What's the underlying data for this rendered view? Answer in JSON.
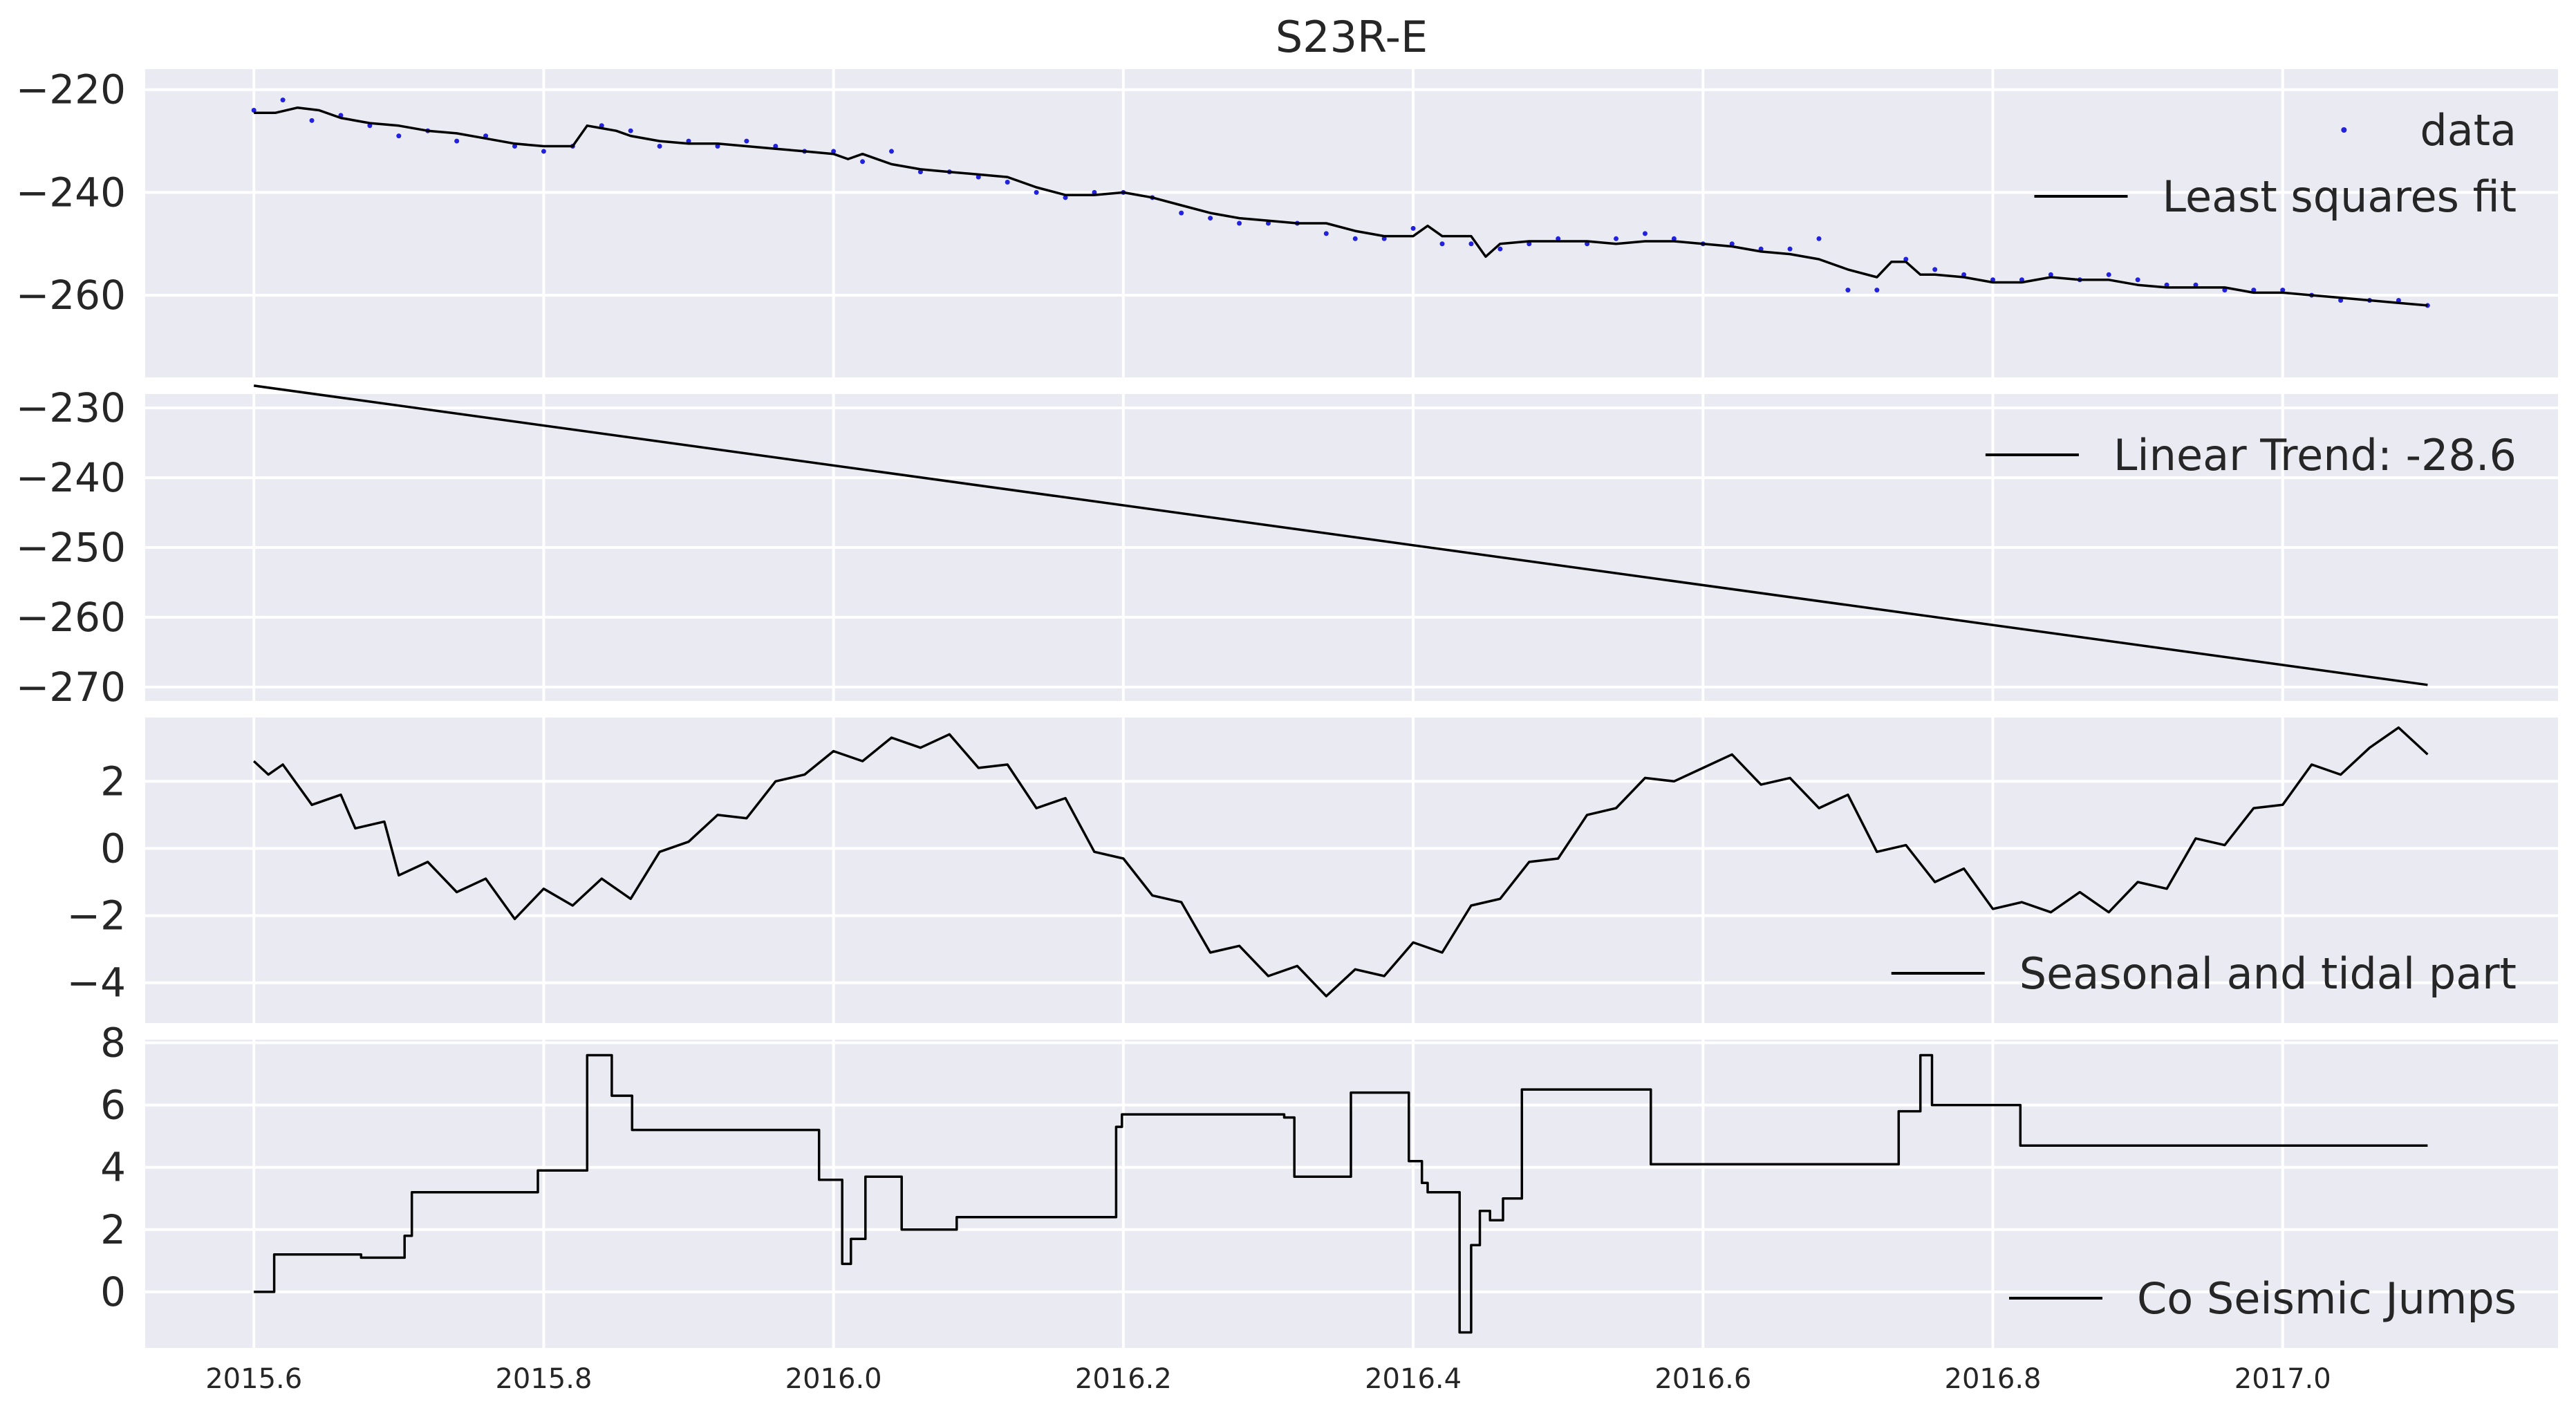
{
  "title": "S23R-E",
  "colors": {
    "panel_bg": "#eaeaf2",
    "grid": "#ffffff",
    "line": "#000000",
    "data_points": "#2222dd",
    "text": "#262626"
  },
  "x_ticks": [
    "2015.6",
    "2015.8",
    "2016.0",
    "2016.2",
    "2016.4",
    "2016.6",
    "2016.8",
    "2017.0"
  ],
  "chart_data": [
    {
      "type": "scatter",
      "xlim": [
        2015.525,
        2017.19
      ],
      "ylim": [
        -276,
        -216
      ],
      "y_ticks": [
        -220,
        -240,
        -260
      ],
      "grid": true,
      "legend_position": "top-right",
      "series": [
        {
          "name": "data",
          "kind": "points",
          "x": [
            2015.6,
            2015.62,
            2015.64,
            2015.66,
            2015.68,
            2015.7,
            2015.72,
            2015.74,
            2015.76,
            2015.78,
            2015.8,
            2015.82,
            2015.84,
            2015.86,
            2015.88,
            2015.9,
            2015.92,
            2015.94,
            2015.96,
            2015.98,
            2016.0,
            2016.02,
            2016.04,
            2016.06,
            2016.08,
            2016.1,
            2016.12,
            2016.14,
            2016.16,
            2016.18,
            2016.2,
            2016.22,
            2016.24,
            2016.26,
            2016.28,
            2016.3,
            2016.32,
            2016.34,
            2016.36,
            2016.38,
            2016.4,
            2016.42,
            2016.44,
            2016.46,
            2016.48,
            2016.5,
            2016.52,
            2016.54,
            2016.56,
            2016.58,
            2016.6,
            2016.62,
            2016.64,
            2016.66,
            2016.68,
            2016.7,
            2016.72,
            2016.74,
            2016.76,
            2016.78,
            2016.8,
            2016.82,
            2016.84,
            2016.86,
            2016.88,
            2016.9,
            2016.92,
            2016.94,
            2016.96,
            2016.98,
            2017.0,
            2017.02,
            2017.04,
            2017.06,
            2017.08,
            2017.1
          ],
          "y": [
            -224,
            -222,
            -226,
            -225,
            -227,
            -229,
            -228,
            -230,
            -229,
            -231,
            -232,
            -231,
            -227,
            -228,
            -231,
            -230,
            -231,
            -230,
            -231,
            -232,
            -232,
            -234,
            -232,
            -236,
            -236,
            -237,
            -238,
            -240,
            -241,
            -240,
            -240,
            -241,
            -244,
            -245,
            -246,
            -246,
            -246,
            -248,
            -249,
            -249,
            -247,
            -250,
            -250,
            -251,
            -250,
            -249,
            -250,
            -249,
            -248,
            -249,
            -250,
            -250,
            -251,
            -251,
            -249,
            -259,
            -259,
            -253,
            -255,
            -256,
            -257,
            -257,
            -256,
            -257,
            -256,
            -257,
            -258,
            -258,
            -259,
            -259,
            -259,
            -260,
            -261,
            -261,
            -261,
            -262
          ]
        },
        {
          "name": "Least squares fit",
          "kind": "line",
          "x": [
            2015.6,
            2015.615,
            2015.63,
            2015.645,
            2015.66,
            2015.68,
            2015.7,
            2015.72,
            2015.74,
            2015.76,
            2015.78,
            2015.8,
            2015.82,
            2015.83,
            2015.84,
            2015.85,
            2015.86,
            2015.88,
            2015.9,
            2015.92,
            2015.94,
            2015.96,
            2015.98,
            2016.0,
            2016.01,
            2016.02,
            2016.04,
            2016.06,
            2016.08,
            2016.1,
            2016.12,
            2016.14,
            2016.16,
            2016.18,
            2016.2,
            2016.22,
            2016.24,
            2016.26,
            2016.28,
            2016.3,
            2016.32,
            2016.34,
            2016.36,
            2016.38,
            2016.4,
            2016.41,
            2016.42,
            2016.44,
            2016.45,
            2016.46,
            2016.48,
            2016.5,
            2016.52,
            2016.54,
            2016.56,
            2016.58,
            2016.6,
            2016.62,
            2016.64,
            2016.66,
            2016.68,
            2016.7,
            2016.72,
            2016.73,
            2016.74,
            2016.75,
            2016.76,
            2016.78,
            2016.8,
            2016.82,
            2016.84,
            2016.86,
            2016.88,
            2016.9,
            2016.92,
            2016.94,
            2016.96,
            2016.98,
            2017.0,
            2017.02,
            2017.04,
            2017.06,
            2017.08,
            2017.1
          ],
          "y": [
            -224.5,
            -224.5,
            -223.5,
            -224,
            -225.5,
            -226.5,
            -227,
            -228,
            -228.5,
            -229.5,
            -230.5,
            -231,
            -231,
            -227,
            -227.5,
            -228,
            -229,
            -230,
            -230.5,
            -230.5,
            -231,
            -231.5,
            -232,
            -232.5,
            -233.5,
            -232.5,
            -234.5,
            -235.5,
            -236,
            -236.5,
            -237,
            -239,
            -240.5,
            -240.5,
            -240,
            -241,
            -242.5,
            -244,
            -245,
            -245.5,
            -246,
            -246,
            -247.5,
            -248.5,
            -248.5,
            -246.5,
            -248.5,
            -248.5,
            -252.5,
            -250,
            -249.5,
            -249.5,
            -249.5,
            -250,
            -249.5,
            -249.5,
            -250,
            -250.5,
            -251.5,
            -252,
            -253,
            -255,
            -256.5,
            -253.5,
            -253.5,
            -256,
            -256,
            -256.5,
            -257.5,
            -257.5,
            -256.5,
            -257,
            -257,
            -258,
            -258.5,
            -258.5,
            -258.5,
            -259.5,
            -259.5,
            -260,
            -260.5,
            -261,
            -261.5,
            -262
          ]
        }
      ]
    },
    {
      "type": "line",
      "xlim": [
        2015.525,
        2017.19
      ],
      "ylim": [
        -272,
        -228
      ],
      "y_ticks": [
        -230,
        -240,
        -250,
        -260,
        -270
      ],
      "grid": true,
      "legend_position": "top-right",
      "series": [
        {
          "name": "Linear Trend: -28.6",
          "x": [
            2015.6,
            2017.1
          ],
          "y": [
            -226.8,
            -269.7
          ]
        }
      ]
    },
    {
      "type": "line",
      "xlim": [
        2015.525,
        2017.19
      ],
      "ylim": [
        -5.2,
        3.9
      ],
      "y_ticks": [
        2,
        0,
        -2,
        -4
      ],
      "grid": true,
      "legend_position": "bottom-right",
      "series": [
        {
          "name": "Seasonal and tidal part",
          "x": [
            2015.6,
            2015.61,
            2015.62,
            2015.64,
            2015.66,
            2015.67,
            2015.69,
            2015.7,
            2015.72,
            2015.74,
            2015.76,
            2015.78,
            2015.8,
            2015.82,
            2015.84,
            2015.86,
            2015.88,
            2015.9,
            2015.92,
            2015.94,
            2015.96,
            2015.98,
            2016.0,
            2016.02,
            2016.04,
            2016.06,
            2016.08,
            2016.1,
            2016.12,
            2016.14,
            2016.16,
            2016.18,
            2016.2,
            2016.22,
            2016.24,
            2016.26,
            2016.28,
            2016.3,
            2016.32,
            2016.34,
            2016.36,
            2016.38,
            2016.4,
            2016.42,
            2016.44,
            2016.46,
            2016.48,
            2016.5,
            2016.52,
            2016.54,
            2016.56,
            2016.58,
            2016.6,
            2016.62,
            2016.64,
            2016.66,
            2016.68,
            2016.7,
            2016.72,
            2016.74,
            2016.76,
            2016.78,
            2016.8,
            2016.82,
            2016.84,
            2016.86,
            2016.88,
            2016.9,
            2016.92,
            2016.94,
            2016.96,
            2016.98,
            2017.0,
            2017.02,
            2017.04,
            2017.06,
            2017.08,
            2017.1
          ],
          "y": [
            2.6,
            2.2,
            2.5,
            1.3,
            1.6,
            0.6,
            0.8,
            -0.8,
            -0.4,
            -1.3,
            -0.9,
            -2.1,
            -1.2,
            -1.7,
            -0.9,
            -1.5,
            -0.1,
            0.2,
            1.0,
            0.9,
            2.0,
            2.2,
            2.9,
            2.6,
            3.3,
            3.0,
            3.4,
            2.4,
            2.5,
            1.2,
            1.5,
            -0.1,
            -0.3,
            -1.4,
            -1.6,
            -3.1,
            -2.9,
            -3.8,
            -3.5,
            -4.4,
            -3.6,
            -3.8,
            -2.8,
            -3.1,
            -1.7,
            -1.5,
            -0.4,
            -0.3,
            1.0,
            1.2,
            2.1,
            2.0,
            2.4,
            2.8,
            1.9,
            2.1,
            1.2,
            1.6,
            -0.1,
            0.1,
            -1.0,
            -0.6,
            -1.8,
            -1.6,
            -1.9,
            -1.3,
            -1.9,
            -1.0,
            -1.2,
            0.3,
            0.1,
            1.2,
            1.3,
            2.5,
            2.2,
            3.0,
            3.6,
            2.8
          ]
        }
      ]
    },
    {
      "type": "line",
      "xlim": [
        2015.525,
        2017.19
      ],
      "ylim": [
        -1.8,
        8.1
      ],
      "y_ticks": [
        8,
        6,
        4,
        2,
        0
      ],
      "grid": true,
      "legend_position": "bottom-right",
      "series": [
        {
          "name": "Co Seismic Jumps",
          "x": [
            2015.6,
            2015.614,
            2015.614,
            2015.674,
            2015.674,
            2015.704,
            2015.704,
            2015.709,
            2015.709,
            2015.796,
            2015.796,
            2015.83,
            2015.83,
            2015.847,
            2015.847,
            2015.861,
            2015.861,
            2015.99,
            2015.99,
            2016.006,
            2016.006,
            2016.012,
            2016.012,
            2016.022,
            2016.022,
            2016.047,
            2016.047,
            2016.085,
            2016.085,
            2016.195,
            2016.195,
            2016.199,
            2016.199,
            2016.311,
            2016.311,
            2016.318,
            2016.318,
            2016.357,
            2016.357,
            2016.397,
            2016.397,
            2016.406,
            2016.406,
            2016.41,
            2016.41,
            2016.432,
            2016.432,
            2016.44,
            2016.44,
            2016.446,
            2016.446,
            2016.453,
            2016.453,
            2016.462,
            2016.462,
            2016.475,
            2016.475,
            2016.564,
            2016.564,
            2016.735,
            2016.735,
            2016.75,
            2016.75,
            2016.758,
            2016.758,
            2016.819,
            2016.819,
            2016.885,
            2016.885,
            2016.972,
            2016.972,
            2017.1
          ],
          "y": [
            0,
            0,
            1.2,
            1.2,
            1.1,
            1.1,
            1.8,
            1.8,
            3.2,
            3.2,
            3.9,
            3.9,
            7.6,
            7.6,
            6.3,
            6.3,
            5.2,
            5.2,
            3.6,
            3.6,
            0.9,
            0.9,
            1.7,
            1.7,
            3.7,
            3.7,
            2.0,
            2.0,
            2.4,
            2.4,
            5.3,
            5.3,
            5.7,
            5.7,
            5.6,
            5.6,
            3.7,
            3.7,
            6.4,
            6.4,
            4.2,
            4.2,
            3.5,
            3.5,
            3.2,
            3.2,
            -1.3,
            -1.3,
            1.5,
            1.5,
            2.6,
            2.6,
            2.3,
            2.3,
            3.0,
            3.0,
            6.5,
            6.5,
            4.1,
            4.1,
            5.8,
            5.8,
            7.6,
            7.6,
            6.0,
            6.0,
            4.7,
            4.7,
            4.7,
            4.7,
            4.7,
            4.7
          ]
        }
      ]
    }
  ]
}
